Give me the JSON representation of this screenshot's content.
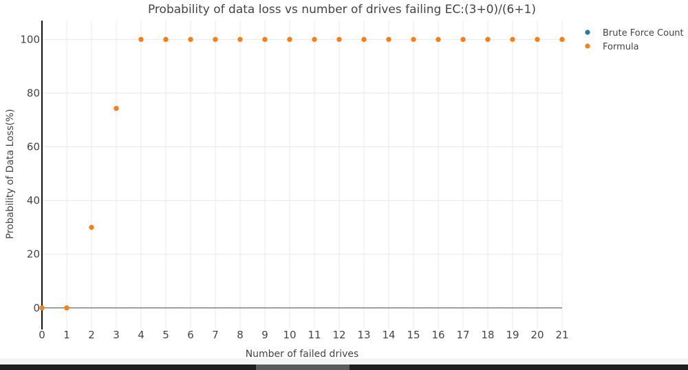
{
  "chart_data": {
    "type": "scatter",
    "title": "Probability of data loss vs number of drives failing EC:(3+0)/(6+1)",
    "xlabel": "Number of failed drives",
    "ylabel": "Probability of Data Loss(%)",
    "xlim": [
      0,
      21
    ],
    "ylim": [
      -8,
      107
    ],
    "xticks": [
      0,
      1,
      2,
      3,
      4,
      5,
      6,
      7,
      8,
      9,
      10,
      11,
      12,
      13,
      14,
      15,
      16,
      17,
      18,
      19,
      20,
      21
    ],
    "yticks": [
      0,
      20,
      40,
      60,
      80,
      100
    ],
    "grid": true,
    "legend": "top-right",
    "x": [
      0,
      1,
      2,
      3,
      4,
      5,
      6,
      7,
      8,
      9,
      10,
      11,
      12,
      13,
      14,
      15,
      16,
      17,
      18,
      19,
      20,
      21
    ],
    "series": [
      {
        "name": "Brute Force Count",
        "color": "#1f77b4",
        "values": [
          0,
          0,
          30,
          74.3,
          100,
          100,
          100,
          100,
          100,
          100,
          100,
          100,
          100,
          100,
          100,
          100,
          100,
          100,
          100,
          100,
          100,
          100
        ]
      },
      {
        "name": "Formula",
        "color": "#ff7f0e",
        "values": [
          0,
          0,
          30,
          74.3,
          100,
          100,
          100,
          100,
          100,
          100,
          100,
          100,
          100,
          100,
          100,
          100,
          100,
          100,
          100,
          100,
          100,
          100
        ]
      }
    ]
  }
}
